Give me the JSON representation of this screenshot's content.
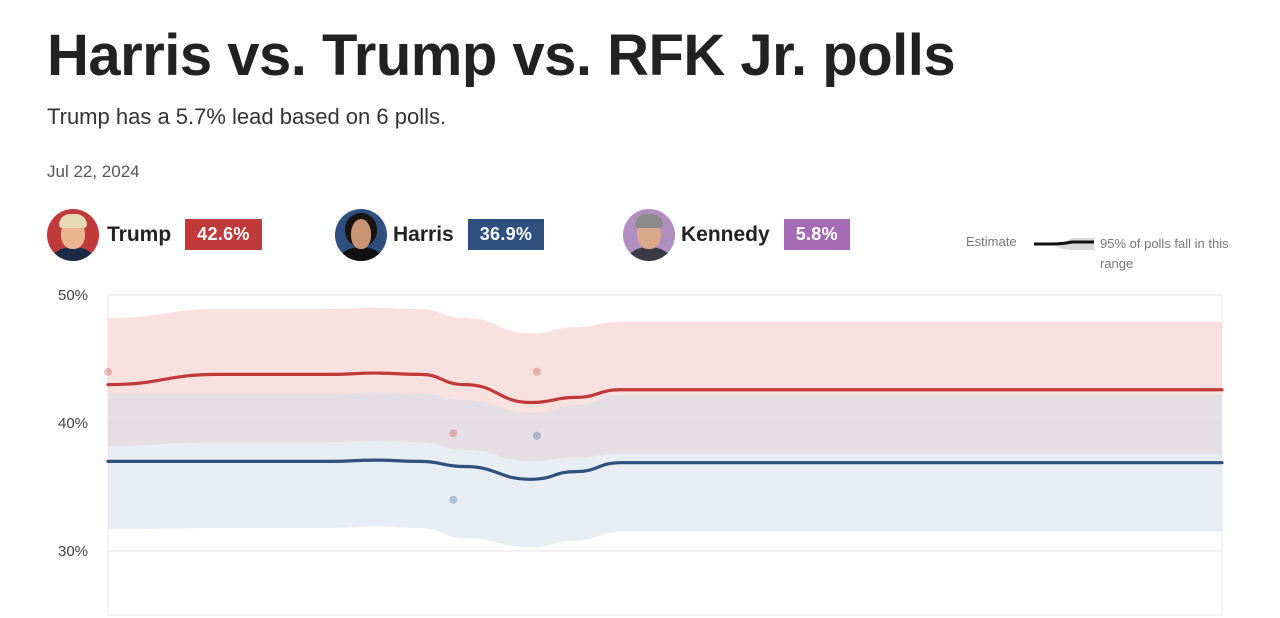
{
  "title": "Harris vs. Trump vs. RFK Jr. polls",
  "subtitle": "Trump has a 5.7% lead based on 6 polls.",
  "date": "Jul 22, 2024",
  "candidates": [
    {
      "name": "Trump",
      "value": "42.6%",
      "color": "#c0393b"
    },
    {
      "name": "Harris",
      "value": "36.9%",
      "color": "#2f4f7f"
    },
    {
      "name": "Kennedy",
      "value": "5.8%",
      "color": "#a66bb5"
    }
  ],
  "legend": {
    "estimate": "Estimate",
    "range": "95% of polls fall in this range"
  },
  "chart_data": {
    "type": "line",
    "ylim": [
      25,
      50
    ],
    "y_ticks": [
      30,
      40,
      50
    ],
    "y_tick_labels": [
      "30%",
      "40%",
      "50%"
    ],
    "x": [
      0,
      10,
      20,
      24,
      28,
      32,
      38,
      42,
      46,
      52,
      60,
      70,
      80,
      90,
      100
    ],
    "series": [
      {
        "name": "Trump",
        "color": "#c0393b",
        "band_color": "#f4c9c4",
        "values": [
          43.0,
          43.8,
          43.8,
          43.9,
          43.8,
          43.0,
          41.6,
          42.0,
          42.6,
          42.6,
          42.6,
          42.6,
          42.6,
          42.6,
          42.6
        ],
        "lower": [
          38.2,
          38.5,
          38.5,
          38.6,
          38.5,
          37.9,
          37.0,
          37.3,
          37.6,
          37.6,
          37.6,
          37.6,
          37.6,
          37.6,
          37.6
        ],
        "upper": [
          48.2,
          48.9,
          48.9,
          49.0,
          48.9,
          48.2,
          47.0,
          47.5,
          47.9,
          47.9,
          47.9,
          47.9,
          47.9,
          47.9,
          47.9
        ],
        "polls": [
          {
            "x": 0,
            "y": 44.0
          },
          {
            "x": 31,
            "y": 39.2
          },
          {
            "x": 38.5,
            "y": 44.0
          }
        ]
      },
      {
        "name": "Harris",
        "color": "#2f4f7f",
        "band_color": "#d6dfea",
        "values": [
          37.0,
          37.0,
          37.0,
          37.1,
          37.0,
          36.6,
          35.6,
          36.2,
          36.9,
          36.9,
          36.9,
          36.9,
          36.9,
          36.9,
          36.9
        ],
        "lower": [
          31.7,
          31.8,
          31.8,
          31.9,
          31.8,
          31.0,
          30.3,
          30.8,
          31.5,
          31.5,
          31.5,
          31.5,
          31.5,
          31.5,
          31.5
        ],
        "upper": [
          42.3,
          42.3,
          42.3,
          42.4,
          42.3,
          41.8,
          40.8,
          41.4,
          42.2,
          42.2,
          42.2,
          42.2,
          42.2,
          42.2,
          42.2
        ],
        "polls": [
          {
            "x": 31,
            "y": 34.0
          },
          {
            "x": 38.5,
            "y": 39.0
          }
        ]
      }
    ]
  }
}
